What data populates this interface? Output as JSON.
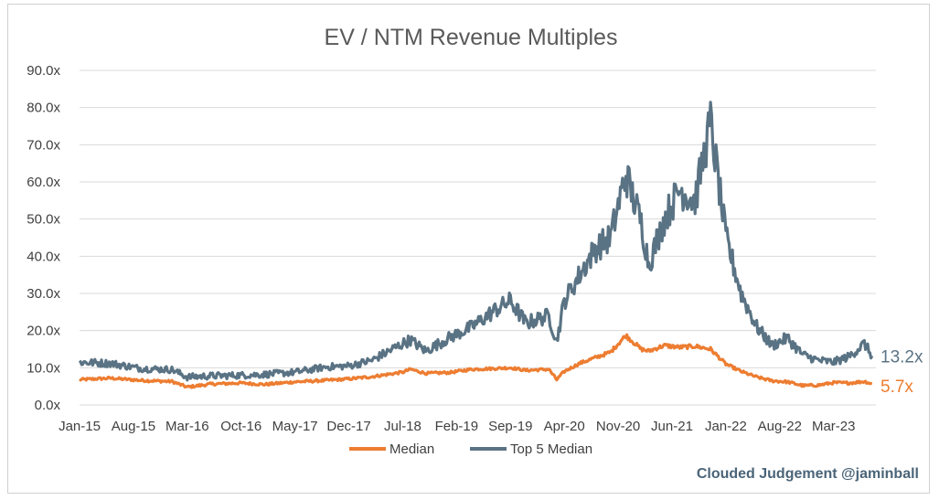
{
  "chart_data": {
    "type": "line",
    "title": "EV / NTM Revenue Multiples",
    "x_tick_labels": [
      "Jan-15",
      "Aug-15",
      "Mar-16",
      "Oct-16",
      "May-17",
      "Dec-17",
      "Jul-18",
      "Feb-19",
      "Sep-19",
      "Apr-20",
      "Nov-20",
      "Jun-21",
      "Jan-22",
      "Aug-22",
      "Mar-23"
    ],
    "y_tick_labels": [
      "0.0x",
      "10.0x",
      "20.0x",
      "30.0x",
      "40.0x",
      "50.0x",
      "60.0x",
      "70.0x",
      "80.0x",
      "90.0x"
    ],
    "ylim": [
      0,
      90
    ],
    "grid": true,
    "legend_position": "bottom",
    "x_dates": [
      "2015-01",
      "2015-05",
      "2015-09",
      "2016-01",
      "2016-03",
      "2016-06",
      "2016-10",
      "2017-01",
      "2017-05",
      "2017-09",
      "2017-12",
      "2018-03",
      "2018-07",
      "2018-08",
      "2018-10",
      "2019-01",
      "2019-04",
      "2019-07",
      "2019-09",
      "2019-11",
      "2020-02",
      "2020-03",
      "2020-04",
      "2020-06",
      "2020-08",
      "2020-10",
      "2020-12",
      "2021-02",
      "2021-03",
      "2021-05",
      "2021-07",
      "2021-09",
      "2021-11",
      "2022-01",
      "2022-03",
      "2022-05",
      "2022-07",
      "2022-09",
      "2022-11",
      "2023-01",
      "2023-03",
      "2023-05",
      "2023-07",
      "2023-08"
    ],
    "series": [
      {
        "name": "Median",
        "color": "#ed7d31",
        "end_label": "5.7x",
        "values": [
          6.8,
          7.2,
          6.6,
          6.3,
          4.8,
          5.6,
          5.9,
          5.5,
          6.2,
          6.6,
          7.0,
          7.6,
          8.8,
          9.6,
          8.5,
          8.7,
          9.6,
          9.8,
          10.0,
          9.3,
          9.6,
          6.8,
          9.0,
          11.2,
          12.7,
          14.2,
          18.7,
          15.0,
          14.5,
          16.0,
          15.5,
          15.8,
          15.0,
          11.0,
          9.0,
          7.5,
          6.5,
          6.2,
          5.2,
          5.3,
          6.0,
          5.9,
          6.3,
          5.7
        ]
      },
      {
        "name": "Top 5 Median",
        "color": "#5a7384",
        "end_label": "13.2x",
        "values": [
          11.5,
          11.2,
          9.8,
          9.5,
          7.5,
          7.8,
          8.0,
          8.2,
          8.8,
          10.2,
          10.5,
          12.0,
          16.5,
          17.5,
          14.5,
          18.0,
          21.0,
          25.5,
          28.0,
          22.0,
          24.0,
          17.0,
          28.0,
          35.0,
          42.0,
          45.0,
          62.0,
          49.0,
          38.0,
          50.0,
          58.0,
          55.0,
          76.0,
          45.0,
          30.0,
          21.0,
          16.0,
          18.0,
          13.5,
          12.0,
          11.5,
          13.0,
          16.5,
          13.2
        ]
      }
    ]
  },
  "watermark": "Clouded Judgement @jaminball"
}
